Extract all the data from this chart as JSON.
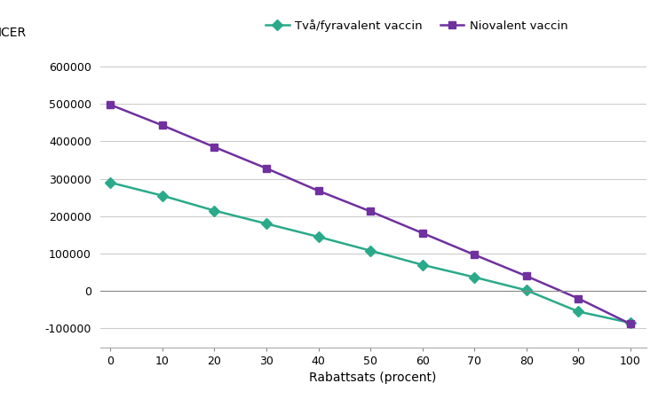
{
  "x": [
    0,
    10,
    20,
    30,
    40,
    50,
    60,
    70,
    80,
    90,
    100
  ],
  "y_tva": [
    290000,
    255000,
    215000,
    180000,
    145000,
    108000,
    70000,
    37000,
    2000,
    -55000,
    -85000
  ],
  "y_nio": [
    498000,
    443000,
    385000,
    328000,
    268000,
    213000,
    155000,
    97000,
    40000,
    -20000,
    -88000
  ],
  "color_tva": "#2aaa8a",
  "color_nio": "#7030a0",
  "marker_tva": "D",
  "marker_nio": "s",
  "label_tva": "Två/fyravalent vaccin",
  "label_nio": "Niovalent vaccin",
  "xlabel": "Rabattsats (procent)",
  "ylabel": "ICER",
  "ylim": [
    -150000,
    650000
  ],
  "yticks": [
    -100000,
    0,
    100000,
    200000,
    300000,
    400000,
    500000,
    600000
  ],
  "xticks": [
    0,
    10,
    20,
    30,
    40,
    50,
    60,
    70,
    80,
    90,
    100
  ],
  "background_color": "#ffffff",
  "grid_color": "#cccccc"
}
